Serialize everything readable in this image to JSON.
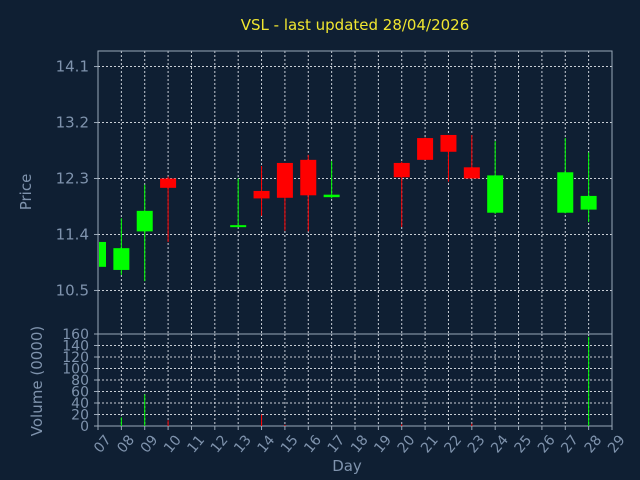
{
  "chart_data": {
    "type": "candlestick",
    "title": "VSL - last updated 28/04/2026",
    "xlabel": "Day",
    "price_panel": {
      "ylabel": "Price",
      "yticks": [
        "14.1",
        "13.2",
        "12.3",
        "11.4",
        "10.5"
      ],
      "ylim": [
        9.8,
        14.35
      ]
    },
    "volume_panel": {
      "ylabel": "Volume (0000)",
      "yticks": [
        "160",
        "140",
        "120",
        "100",
        "80",
        "60",
        "40",
        "20",
        "0"
      ],
      "ylim": [
        0,
        160
      ]
    },
    "x_ticks": [
      "07",
      "08",
      "09",
      "10",
      "11",
      "12",
      "13",
      "14",
      "15",
      "16",
      "17",
      "18",
      "19",
      "20",
      "21",
      "22",
      "23",
      "24",
      "25",
      "26",
      "27",
      "28",
      "29"
    ],
    "colors": {
      "up": "#00ff00",
      "down": "#ff0000"
    },
    "candles": [
      {
        "day": 0,
        "open": 10.88,
        "high": 11.32,
        "low": 10.85,
        "close": 11.28
      },
      {
        "day": 1,
        "open": 10.83,
        "high": 11.66,
        "low": 10.75,
        "close": 11.18
      },
      {
        "day": 2,
        "open": 11.45,
        "high": 12.2,
        "low": 10.65,
        "close": 11.78
      },
      {
        "day": 3,
        "open": 12.3,
        "high": 12.33,
        "low": 11.28,
        "close": 12.15
      },
      {
        "day": 6,
        "open": 11.53,
        "high": 12.3,
        "low": 11.52,
        "close": 11.55
      },
      {
        "day": 7,
        "open": 12.1,
        "high": 12.5,
        "low": 11.7,
        "close": 11.98
      },
      {
        "day": 8,
        "open": 12.55,
        "high": 12.55,
        "low": 11.46,
        "close": 11.99
      },
      {
        "day": 9,
        "open": 12.6,
        "high": 12.68,
        "low": 11.45,
        "close": 12.03
      },
      {
        "day": 10,
        "open": 12.0,
        "high": 12.58,
        "low": 11.98,
        "close": 12.04
      },
      {
        "day": 13,
        "open": 12.55,
        "high": 12.57,
        "low": 11.52,
        "close": 12.32
      },
      {
        "day": 14,
        "open": 12.95,
        "high": 12.96,
        "low": 12.6,
        "close": 12.6
      },
      {
        "day": 15,
        "open": 13.0,
        "high": 13.0,
        "low": 12.25,
        "close": 12.73
      },
      {
        "day": 16,
        "open": 12.48,
        "high": 13.0,
        "low": 12.3,
        "close": 12.3
      },
      {
        "day": 17,
        "open": 11.75,
        "high": 12.9,
        "low": 11.73,
        "close": 12.35
      },
      {
        "day": 20,
        "open": 11.75,
        "high": 12.95,
        "low": 11.74,
        "close": 12.4
      },
      {
        "day": 21,
        "open": 11.8,
        "high": 12.72,
        "low": 11.6,
        "close": 12.02
      }
    ],
    "volumes": [
      {
        "day": 1,
        "value": 15,
        "dir": "up"
      },
      {
        "day": 2,
        "value": 55,
        "dir": "up"
      },
      {
        "day": 3,
        "value": 10,
        "dir": "down"
      },
      {
        "day": 7,
        "value": 20,
        "dir": "down"
      },
      {
        "day": 8,
        "value": 2,
        "dir": "down"
      },
      {
        "day": 13,
        "value": 3,
        "dir": "down"
      },
      {
        "day": 16,
        "value": 4,
        "dir": "down"
      },
      {
        "day": 21,
        "value": 155,
        "dir": "up"
      }
    ]
  }
}
